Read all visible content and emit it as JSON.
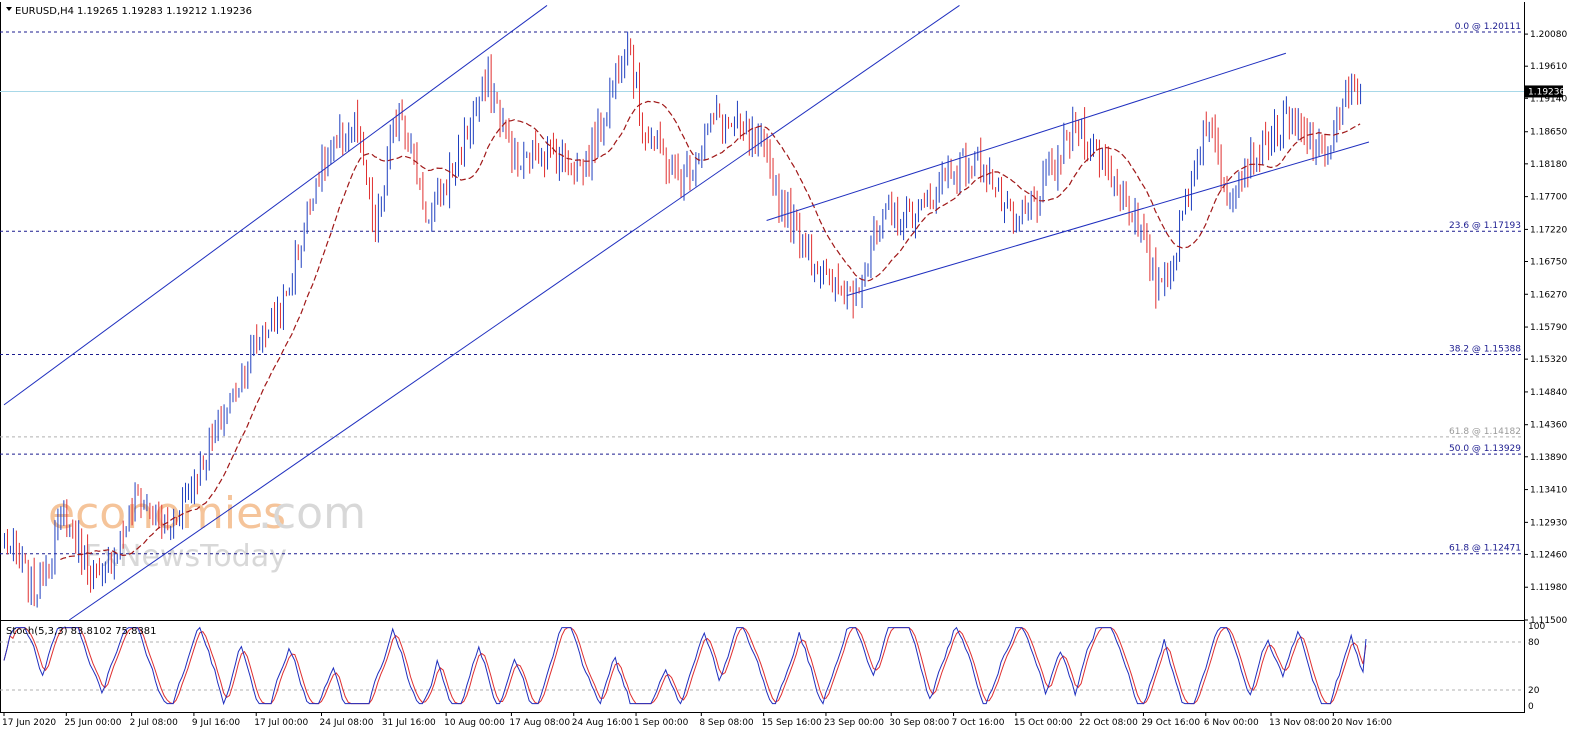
{
  "header": {
    "symbol": "EURUSD,H4",
    "ohlc": "1.19265 1.19283 1.19212 1.19236"
  },
  "watermark": {
    "part1": "economies",
    "part2": ".com",
    "part3": "FxNewsToday",
    "color1": "#f5c49a",
    "color2": "#d8d8d8"
  },
  "colors": {
    "bull": "#1f3fbf",
    "bear": "#e03030",
    "ma": "#a01818",
    "channel": "#1f2fbf",
    "fib": "#1b1b8f",
    "current": "#a8d8e8",
    "stoch_main": "#1f2fbf",
    "stoch_signal": "#e03030"
  },
  "chart_data": [
    {
      "type": "candlestick",
      "symbol": "EURUSD",
      "timeframe": "H4",
      "ylim": [
        1.115,
        1.2055
      ],
      "y_ticks": [
        "1.20080",
        "1.19610",
        "1.19140",
        "1.18650",
        "1.18180",
        "1.17700",
        "1.17220",
        "1.16750",
        "1.16270",
        "1.15790",
        "1.15320",
        "1.14840",
        "1.14360",
        "1.13890",
        "1.13410",
        "1.12930",
        "1.12460",
        "1.11980",
        "1.11500"
      ],
      "x_ticks": [
        "17 Jun 2020",
        "25 Jun 00:00",
        "2 Jul 08:00",
        "9 Jul 16:00",
        "17 Jul 00:00",
        "24 Jul 08:00",
        "31 Jul 16:00",
        "10 Aug 00:00",
        "17 Aug 08:00",
        "24 Aug 16:00",
        "1 Sep 00:00",
        "8 Sep 08:00",
        "15 Sep 16:00",
        "23 Sep 00:00",
        "30 Sep 08:00",
        "7 Oct 16:00",
        "15 Oct 00:00",
        "22 Oct 08:00",
        "29 Oct 16:00",
        "6 Nov 00:00",
        "13 Nov 08:00",
        "20 Nov 16:00"
      ],
      "current_price": "1.19236",
      "fib_levels": [
        {
          "label": "0.0 @ 1.20111",
          "value": 1.20111
        },
        {
          "label": "23.6 @ 1.17193",
          "value": 1.17193
        },
        {
          "label": "38.2 @ 1.15388",
          "value": 1.15388
        },
        {
          "label": "61.8 @ 1.14182",
          "value": 1.14182,
          "muted": true
        },
        {
          "label": "50.0 @ 1.13929",
          "value": 1.13929
        },
        {
          "label": "61.8 @ 1.12471",
          "value": 1.12471
        }
      ],
      "price_path": [
        {
          "i": 0,
          "p": 1.127
        },
        {
          "i": 10,
          "p": 1.119
        },
        {
          "i": 20,
          "p": 1.13
        },
        {
          "i": 32,
          "p": 1.12
        },
        {
          "i": 45,
          "p": 1.133
        },
        {
          "i": 55,
          "p": 1.128
        },
        {
          "i": 70,
          "p": 1.141
        },
        {
          "i": 85,
          "p": 1.156
        },
        {
          "i": 95,
          "p": 1.162
        },
        {
          "i": 105,
          "p": 1.18
        },
        {
          "i": 118,
          "p": 1.188
        },
        {
          "i": 125,
          "p": 1.172
        },
        {
          "i": 133,
          "p": 1.191
        },
        {
          "i": 143,
          "p": 1.173
        },
        {
          "i": 150,
          "p": 1.18
        },
        {
          "i": 163,
          "p": 1.194
        },
        {
          "i": 173,
          "p": 1.181
        },
        {
          "i": 180,
          "p": 1.184
        },
        {
          "i": 195,
          "p": 1.181
        },
        {
          "i": 203,
          "p": 1.19
        },
        {
          "i": 210,
          "p": 1.201
        },
        {
          "i": 215,
          "p": 1.187
        },
        {
          "i": 228,
          "p": 1.179
        },
        {
          "i": 240,
          "p": 1.189
        },
        {
          "i": 255,
          "p": 1.184
        },
        {
          "i": 262,
          "p": 1.176
        },
        {
          "i": 278,
          "p": 1.164
        },
        {
          "i": 286,
          "p": 1.163
        },
        {
          "i": 297,
          "p": 1.174
        },
        {
          "i": 310,
          "p": 1.175
        },
        {
          "i": 318,
          "p": 1.181
        },
        {
          "i": 330,
          "p": 1.182
        },
        {
          "i": 340,
          "p": 1.172
        },
        {
          "i": 350,
          "p": 1.178
        },
        {
          "i": 362,
          "p": 1.188
        },
        {
          "i": 372,
          "p": 1.181
        },
        {
          "i": 380,
          "p": 1.175
        },
        {
          "i": 388,
          "p": 1.164
        },
        {
          "i": 394,
          "p": 1.168
        },
        {
          "i": 405,
          "p": 1.189
        },
        {
          "i": 412,
          "p": 1.178
        },
        {
          "i": 423,
          "p": 1.184
        },
        {
          "i": 432,
          "p": 1.188
        },
        {
          "i": 445,
          "p": 1.183
        },
        {
          "i": 452,
          "p": 1.191
        },
        {
          "i": 457,
          "p": 1.1924
        }
      ],
      "trend_lines": [
        {
          "i1": 0,
          "p1": 1.1465,
          "i2": 183,
          "p2": 1.205
        },
        {
          "i1": 22,
          "p1": 1.115,
          "i2": 322,
          "p2": 1.205
        },
        {
          "i1": 257,
          "p1": 1.1735,
          "i2": 432,
          "p2": 1.198
        },
        {
          "i1": 284,
          "p1": 1.1625,
          "i2": 460,
          "p2": 1.185
        }
      ]
    },
    {
      "type": "line",
      "indicator": "Stochastic",
      "label": "Stoch(5,3,3) 83.8102 75.8381",
      "ylim": [
        0,
        100
      ],
      "y_ticks": [
        "100",
        "80",
        "20",
        "0"
      ],
      "levels": [
        80,
        20
      ],
      "series": [
        {
          "name": "main",
          "last": 83.8102
        },
        {
          "name": "signal",
          "last": 75.8381
        }
      ]
    }
  ]
}
